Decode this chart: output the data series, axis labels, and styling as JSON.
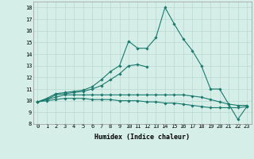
{
  "xlabel": "Humidex (Indice chaleur)",
  "ylabel": "",
  "background_color": "#d6eee8",
  "grid_color": "#b8d8d0",
  "line_color": "#1a7a6e",
  "xlim": [
    -0.5,
    23.5
  ],
  "ylim": [
    8,
    18.5
  ],
  "xticks": [
    0,
    1,
    2,
    3,
    4,
    5,
    6,
    7,
    8,
    9,
    10,
    11,
    12,
    13,
    14,
    15,
    16,
    17,
    18,
    19,
    20,
    21,
    22,
    23
  ],
  "yticks": [
    8,
    9,
    10,
    11,
    12,
    13,
    14,
    15,
    16,
    17,
    18
  ],
  "lines": [
    [
      9.9,
      10.2,
      10.6,
      10.7,
      10.8,
      10.9,
      11.2,
      11.8,
      12.5,
      13.0,
      15.1,
      14.5,
      14.5,
      15.4,
      18.0,
      16.6,
      15.3,
      14.3,
      13.0,
      11.0,
      11.0,
      9.7,
      8.4,
      9.5
    ],
    [
      9.9,
      10.1,
      10.5,
      10.6,
      10.7,
      10.8,
      11.0,
      11.3,
      11.8,
      12.3,
      13.0,
      13.1,
      12.9,
      null,
      null,
      null,
      null,
      null,
      null,
      null,
      null,
      null,
      null,
      null
    ],
    [
      9.9,
      10.1,
      10.3,
      10.5,
      10.5,
      10.5,
      10.5,
      10.5,
      10.5,
      10.5,
      10.5,
      10.5,
      10.5,
      10.5,
      10.5,
      10.5,
      10.5,
      10.4,
      10.3,
      10.1,
      9.9,
      9.7,
      9.6,
      9.6
    ],
    [
      9.9,
      10.0,
      10.1,
      10.2,
      10.2,
      10.2,
      10.1,
      10.1,
      10.1,
      10.0,
      10.0,
      10.0,
      9.9,
      9.9,
      9.8,
      9.8,
      9.7,
      9.6,
      9.5,
      9.4,
      9.4,
      9.4,
      9.4,
      9.5
    ]
  ],
  "marker": "D",
  "markersize": 1.8,
  "linewidth": 0.8,
  "tick_fontsize": 5.0,
  "xlabel_fontsize": 6.0
}
